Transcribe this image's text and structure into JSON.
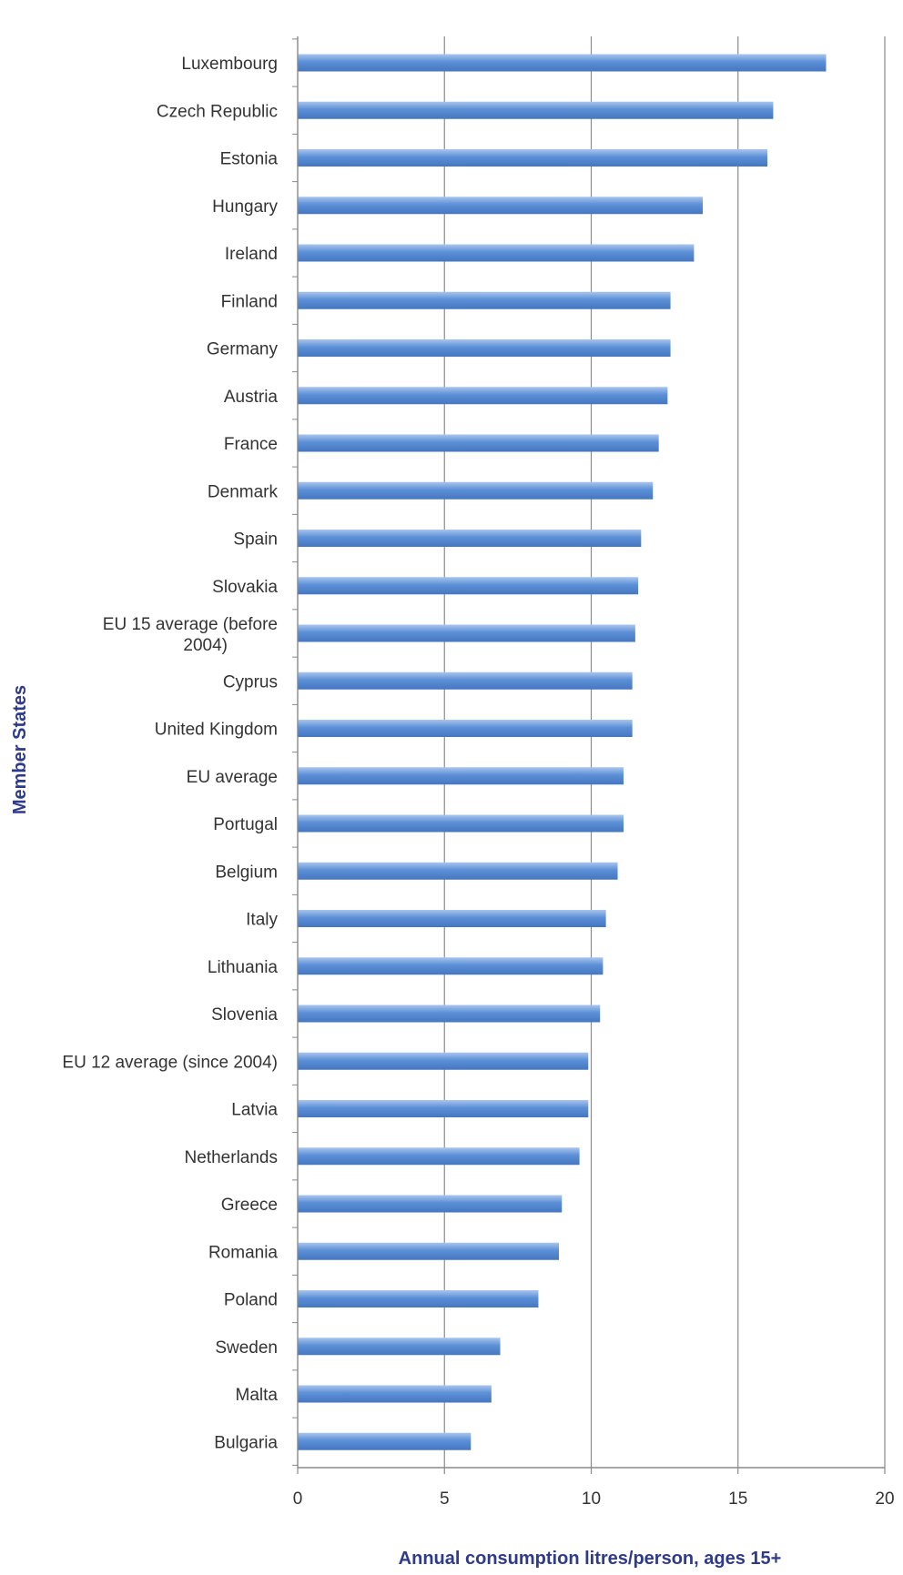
{
  "chart_data": {
    "type": "bar",
    "orientation": "horizontal",
    "title": "",
    "xlabel": "Annual consumption litres/person, ages 15+",
    "ylabel": "Member States",
    "xlim": [
      0,
      20
    ],
    "x_ticks": [
      0,
      5,
      10,
      15,
      20
    ],
    "grid": "vertical",
    "legend": "none",
    "categories": [
      "Luxembourg",
      "Czech Republic",
      "Estonia",
      "Hungary",
      "Ireland",
      "Finland",
      "Germany",
      "Austria",
      "France",
      "Denmark",
      "Spain",
      "Slovakia",
      "EU 15 average (before 2004)",
      "Cyprus",
      "United Kingdom",
      "EU average",
      "Portugal",
      "Belgium",
      "Italy",
      "Lithuania",
      "Slovenia",
      "EU 12 average (since 2004)",
      "Latvia",
      "Netherlands",
      "Greece",
      "Romania",
      "Poland",
      "Sweden",
      "Malta",
      "Bulgaria"
    ],
    "values": [
      18.0,
      16.2,
      16.0,
      13.8,
      13.5,
      12.7,
      12.7,
      12.6,
      12.3,
      12.1,
      11.7,
      11.6,
      11.5,
      11.4,
      11.4,
      11.1,
      11.1,
      10.9,
      10.5,
      10.4,
      10.3,
      9.9,
      9.9,
      9.6,
      9.0,
      8.9,
      8.2,
      6.9,
      6.6,
      5.9
    ]
  },
  "colors": {
    "bar": "#5b8fd6",
    "bar_light": "#a9c5ee",
    "bar_dark": "#4577c0",
    "axis_title": "#2e3a8c",
    "grid": "#8a8a8a",
    "axis": "#888888",
    "text": "#333333"
  }
}
